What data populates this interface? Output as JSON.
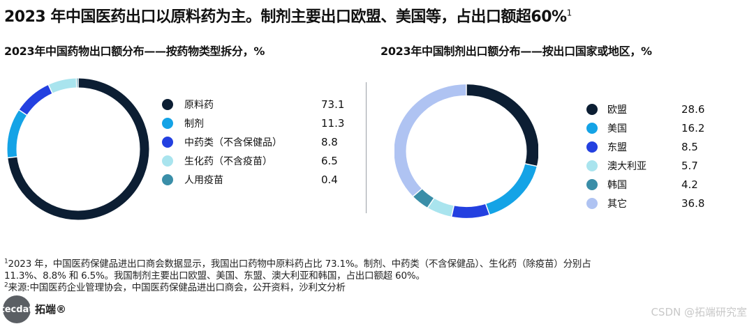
{
  "title": "2023 年中国医药出口以原料药为主。制剂主要出口欧盟、美国等，占出口额超60%",
  "title_sup": "1",
  "chart_data": [
    {
      "type": "pie",
      "donut": true,
      "title": "2023年中国药物出口额分布——按药物类型拆分，%",
      "categories": [
        "原料药",
        "制剂",
        "中药类（不含保健品）",
        "生化药（不含疫苗）",
        "人用疫苗"
      ],
      "values": [
        73.1,
        11.3,
        8.8,
        6.5,
        0.4
      ],
      "value_labels": [
        "73.1",
        "11.3",
        "8.8",
        "6.5",
        "0.4"
      ],
      "colors": [
        "#0c1e33",
        "#14a3e6",
        "#2340e0",
        "#a9e4ee",
        "#3a8ea8"
      ],
      "legend": "right"
    },
    {
      "type": "pie",
      "donut": true,
      "title": "2023年中国制剂出口额分布——按出口国家或地区，%",
      "categories": [
        "欧盟",
        "美国",
        "东盟",
        "澳大利亚",
        "韩国",
        "其它"
      ],
      "values": [
        28.6,
        16.2,
        8.5,
        5.7,
        4.2,
        36.8
      ],
      "value_labels": [
        "28.6",
        "16.2",
        "8.5",
        "5.7",
        "4.2",
        "36.8"
      ],
      "colors": [
        "#0c1e33",
        "#14a3e6",
        "#2340e0",
        "#a9e4ee",
        "#3a8ea8",
        "#afc3f2"
      ],
      "legend": "right"
    }
  ],
  "notes": {
    "note1_sup": "1",
    "note1_line1": "2023 年，中国医药保健品进出口商会数据显示，我国出口药物中原料药占比 73.1%。制剂、中药类（不含保健品）、生化药（除疫苗）分别占",
    "note1_line2": "11.3%、8.8% 和 6.5%。我国制剂主要出口欧盟、美国、东盟、澳大利亚和韩国，占出口额超 60%。",
    "note2_sup": "2",
    "note2": "来源:中国医药企业管理协会，中国医药保健品进出口商会，公开资料，沙利文分析"
  },
  "logo": {
    "circle_text": "tecdat",
    "brand": "拓端®"
  },
  "watermark": "CSDN @拓端研究室"
}
